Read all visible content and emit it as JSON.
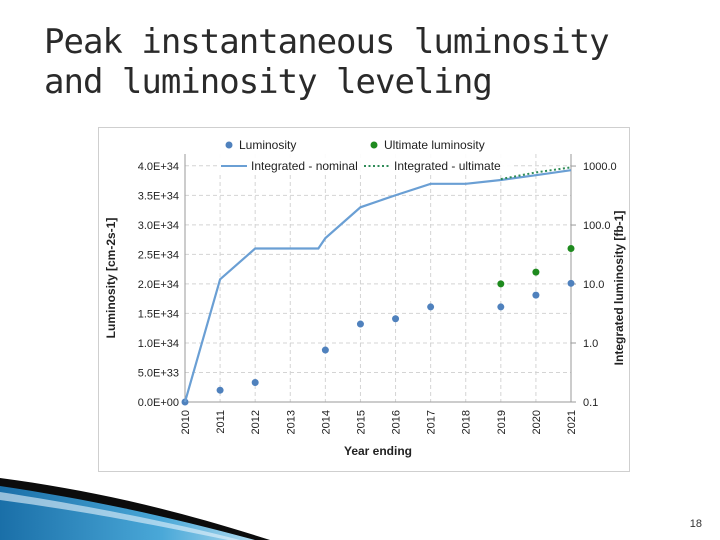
{
  "slide": {
    "title": "Peak instantaneous luminosity and luminosity leveling",
    "page_number": "18"
  },
  "chart_data": {
    "type": "scatter",
    "title": "",
    "xlabel": "Year ending",
    "ylabel": "Luminosity [cm-2s-1]",
    "y2label": "Integrated luminosity [fb-1]",
    "x_ticks": [
      "2010",
      "2011",
      "2012",
      "2013",
      "2014",
      "2015",
      "2016",
      "2017",
      "2018",
      "2019",
      "2020",
      "2021"
    ],
    "y_ticks": [
      "0.0E+00",
      "5.0E+33",
      "1.0E+34",
      "1.5E+34",
      "2.0E+34",
      "2.5E+34",
      "3.0E+34",
      "3.5E+34",
      "4.0E+34"
    ],
    "y2_ticks": [
      "0.1",
      "1.0",
      "10.0",
      "100.0",
      "1000.0"
    ],
    "ylim": [
      0,
      4.2e+34
    ],
    "y2lim": [
      0.1,
      1600
    ],
    "y2_scale": "log",
    "grid": true,
    "legend_position": "top",
    "series": [
      {
        "name": "Luminosity",
        "type": "scatter",
        "axis": "left",
        "color": "#4f81bd",
        "x": [
          2010,
          2011,
          2012,
          2014,
          2015,
          2016,
          2017,
          2019,
          2020,
          2021
        ],
        "y": [
          0,
          2e+33,
          3.3e+33,
          8.8e+33,
          1.32e+34,
          1.41e+34,
          1.61e+34,
          1.61e+34,
          1.81e+34,
          2.01e+34
        ]
      },
      {
        "name": "Ultimate luminosity",
        "type": "scatter",
        "axis": "left",
        "color": "#1e8a1e",
        "x": [
          2019,
          2020,
          2021
        ],
        "y": [
          2e+34,
          2.2e+34,
          2.6e+34
        ]
      },
      {
        "name": "Integrated - nominal",
        "type": "line",
        "axis": "right",
        "color": "#6a9fd4",
        "x": [
          2010,
          2011,
          2012,
          2013,
          2013.8,
          2014,
          2015,
          2016,
          2017,
          2018,
          2019,
          2020,
          2021
        ],
        "y": [
          0.1,
          12,
          40,
          40,
          40,
          60,
          200,
          320,
          500,
          500,
          580,
          700,
          850
        ]
      },
      {
        "name": "Integrated - ultimate",
        "type": "line",
        "axis": "right",
        "color": "#2e8b57",
        "dashed": true,
        "x": [
          2019,
          2020,
          2021
        ],
        "y": [
          600,
          780,
          950
        ]
      }
    ]
  }
}
